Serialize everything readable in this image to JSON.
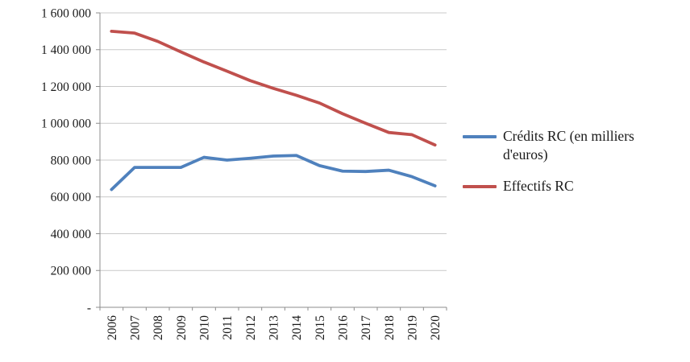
{
  "chart_data": {
    "type": "line",
    "title": "",
    "xlabel": "",
    "ylabel": "",
    "categories": [
      "2006",
      "2007",
      "2008",
      "2009",
      "2010",
      "2011",
      "2012",
      "2013",
      "2014",
      "2015",
      "2016",
      "2017",
      "2018",
      "2019",
      "2020"
    ],
    "series": [
      {
        "name": "Crédits RC (en milliers d'euros)",
        "color": "#4F81BD",
        "values": [
          640000,
          760000,
          760000,
          760000,
          815000,
          800000,
          810000,
          822000,
          825000,
          770000,
          740000,
          738000,
          745000,
          710000,
          660000
        ]
      },
      {
        "name": "Effectifs RC",
        "color": "#C0504D",
        "values": [
          1500000,
          1490000,
          1445000,
          1388000,
          1333000,
          1283000,
          1232000,
          1190000,
          1152000,
          1110000,
          1052000,
          1000000,
          950000,
          938000,
          882000
        ]
      }
    ],
    "ylim": [
      0,
      1600000
    ],
    "ytick_step": 200000,
    "ytick_labels": [
      "-",
      "200 000",
      "400 000",
      "600 000",
      "800 000",
      "1 000 000",
      "1 200 000",
      "1 400 000",
      "1 600 000"
    ],
    "grid": true,
    "legend_position": "right",
    "colors": {
      "grid": "#C9C9C9",
      "axis": "#8C8C8C",
      "text": "#1a1a1a"
    }
  }
}
